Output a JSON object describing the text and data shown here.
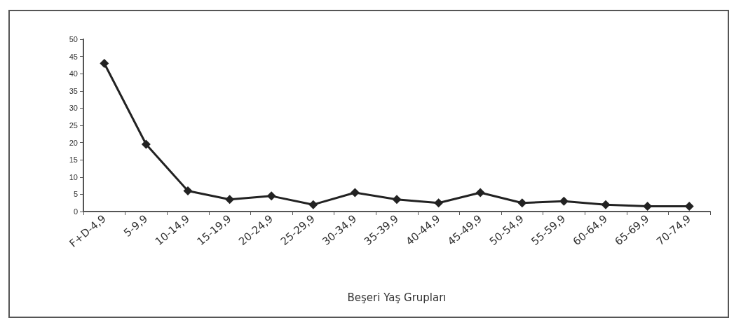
{
  "chart_data": {
    "type": "line",
    "xlabel": "Beşeri Yaş Grupları",
    "categories": [
      "F+D-4,9",
      "5-9,9",
      "10-14,9",
      "15-19,9",
      "20-24,9",
      "25-29,9",
      "30-34,9",
      "35-39,9",
      "40-44,9",
      "45-49,9",
      "50-54,9",
      "55-59,9",
      "60-64,9",
      "65-69,9",
      "70-74,9"
    ],
    "series": [
      {
        "color": "#222222",
        "values": [
          43,
          19.5,
          6,
          3.5,
          4.5,
          2,
          5.5,
          3.5,
          2.5,
          5.5,
          2.5,
          3,
          2,
          1.5,
          1.5
        ]
      }
    ],
    "ylim": [
      0,
      50
    ],
    "yticks": [
      0,
      5,
      10,
      15,
      20,
      25,
      30,
      35,
      40,
      45,
      50
    ],
    "grid": false,
    "marker": "diamond",
    "line_style": "solid"
  }
}
